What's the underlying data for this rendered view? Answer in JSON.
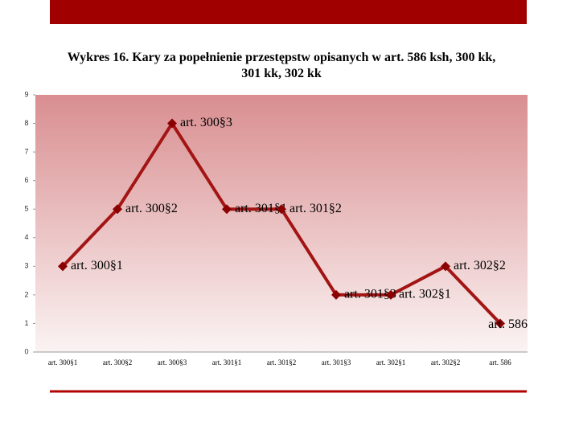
{
  "chart_data": {
    "type": "line",
    "title": "Wykres 16. Kary za popełnienie przestępstw opisanych w art. 586 ksh, 300 kk, 301 kk, 302 kk",
    "categories": [
      "art. 300§1",
      "art. 300§2",
      "art. 300§3",
      "art. 301§1",
      "art. 301§2",
      "art. 301§3",
      "art. 302§1",
      "art. 302§2",
      "art. 586"
    ],
    "values": [
      3,
      5,
      8,
      5,
      5,
      2,
      2,
      3,
      1
    ],
    "color": "#a31515",
    "ylim": [
      0,
      9
    ],
    "yticks": [
      0,
      1,
      2,
      3,
      4,
      5,
      6,
      7,
      8,
      9
    ],
    "grid": false
  }
}
